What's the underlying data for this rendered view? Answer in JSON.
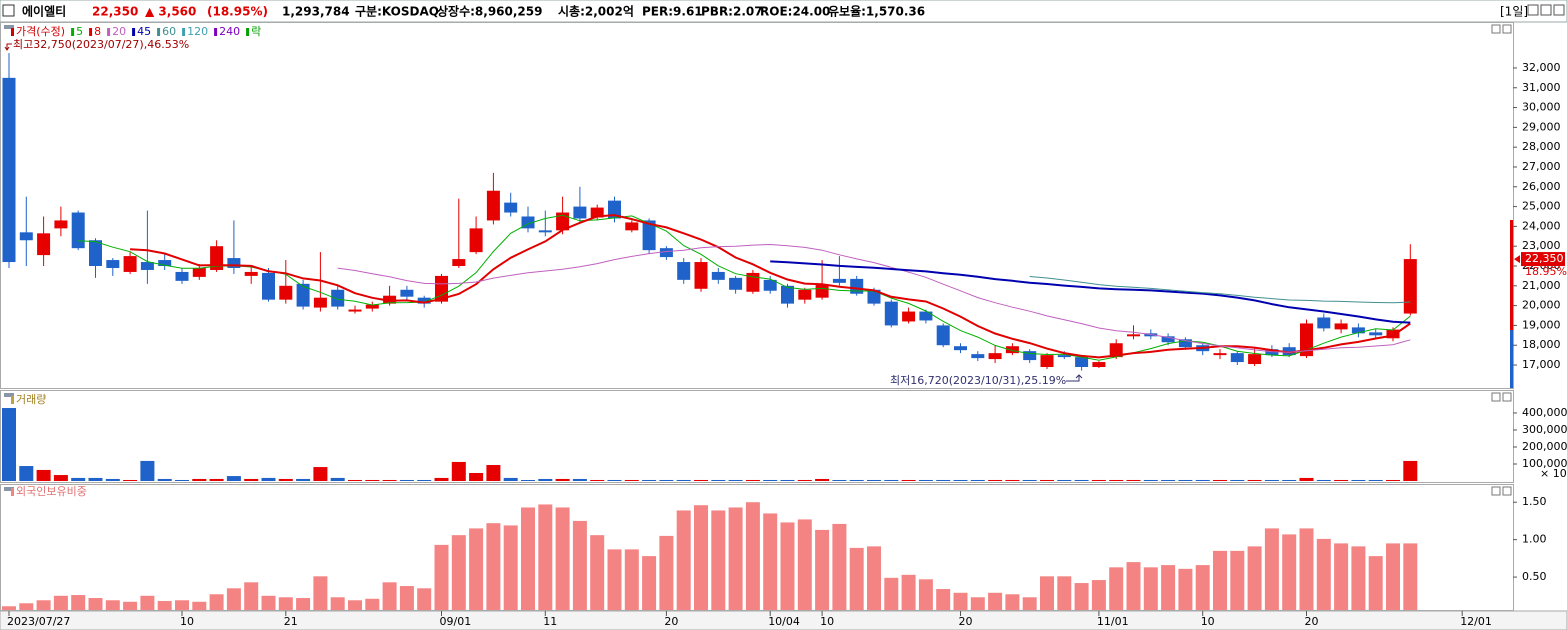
{
  "header": {
    "name": "에이엘티",
    "price": "22,350",
    "change": "▲ 3,560",
    "change_pct": "(18.95%)",
    "volume": "1,293,784",
    "market": "구분:KOSDAQ",
    "shares": "상장수:8,960,259",
    "cap": "시총:2,002억",
    "per": "PER:9.61",
    "pbr": "PBR:2.07",
    "roe": "ROE:24.00",
    "reserve": "유보율:1,570.36",
    "period": "[1일]"
  },
  "chart_data": [
    {
      "type": "candlestick",
      "legend": [
        {
          "name": "가격(수정)",
          "color": "#d00000"
        },
        {
          "name": "5",
          "period": 5,
          "color": "#00b000"
        },
        {
          "name": "8",
          "period": 8,
          "color": "#e00000"
        },
        {
          "name": "20",
          "period": 20,
          "color": "#c060c0"
        },
        {
          "name": "45",
          "period": 45,
          "color": "#0000b0"
        },
        {
          "name": "60",
          "period": 60,
          "color": "#409090"
        },
        {
          "name": "120",
          "period": 120,
          "color": "#40a0b0"
        },
        {
          "name": "240",
          "period": 240,
          "color": "#8000c0"
        },
        {
          "name": "락",
          "color": "#00a000"
        }
      ],
      "categories": [
        "2023/07/27",
        null,
        null,
        null,
        null,
        null,
        null,
        null,
        null,
        null,
        "10",
        null,
        null,
        null,
        null,
        null,
        "21",
        null,
        null,
        null,
        null,
        null,
        null,
        null,
        null,
        "09/01",
        null,
        null,
        null,
        null,
        null,
        "11",
        null,
        null,
        null,
        null,
        null,
        null,
        "20",
        null,
        null,
        null,
        null,
        null,
        "10/04",
        null,
        null,
        "10",
        null,
        null,
        null,
        null,
        null,
        null,
        null,
        "20",
        null,
        null,
        null,
        null,
        null,
        null,
        null,
        "11/01",
        null,
        null,
        null,
        null,
        null,
        "10",
        null,
        null,
        null,
        null,
        null,
        "20",
        null,
        null,
        null,
        null,
        null,
        null,
        null,
        null,
        "12/01"
      ],
      "open": [
        31500,
        23700,
        22550,
        23900,
        24700,
        23300,
        22300,
        21700,
        22200,
        22300,
        21700,
        21450,
        21800,
        22400,
        21500,
        21650,
        20300,
        21100,
        19900,
        20800,
        19700,
        19850,
        20100,
        20800,
        20400,
        20200,
        22000,
        22700,
        24300,
        25200,
        24500,
        23800,
        23800,
        25000,
        24450,
        25300,
        23800,
        24300,
        22900,
        22200,
        20850,
        21700,
        21400,
        20700,
        21300,
        21000,
        20300,
        20400,
        21350,
        21350,
        20800,
        20200,
        19200,
        19700,
        19000,
        17950,
        17550,
        17300,
        17600,
        17700,
        16900,
        17500,
        17400,
        16900,
        17400,
        18450,
        18600,
        18450,
        18300,
        18000,
        17500,
        17600,
        17050,
        17800,
        17900,
        17450,
        19400,
        18800,
        18900,
        18650,
        18350,
        19600,
        null,
        null,
        null
      ],
      "high": [
        32750,
        25500,
        24500,
        25000,
        24800,
        23400,
        22400,
        22700,
        24800,
        22600,
        21900,
        22100,
        23300,
        24300,
        22000,
        21900,
        22300,
        21300,
        22700,
        21000,
        20000,
        20200,
        21000,
        21000,
        20500,
        21600,
        25400,
        24500,
        26700,
        25700,
        25000,
        24800,
        25500,
        26000,
        25100,
        25500,
        24300,
        24400,
        23000,
        22400,
        22400,
        21900,
        21500,
        21800,
        21500,
        21100,
        20900,
        22300,
        22500,
        21500,
        20900,
        20300,
        19900,
        19800,
        19100,
        18100,
        17700,
        18000,
        18100,
        17800,
        17600,
        17700,
        17500,
        17200,
        18300,
        19000,
        18800,
        18600,
        18400,
        18100,
        17800,
        17700,
        17900,
        18000,
        18100,
        19300,
        19600,
        19300,
        19100,
        18800,
        18900,
        23100,
        null,
        null,
        null
      ],
      "low": [
        21900,
        22000,
        22000,
        23500,
        22800,
        21400,
        21500,
        21600,
        21100,
        21800,
        21100,
        21300,
        21700,
        21600,
        21100,
        20200,
        20100,
        19800,
        19700,
        19800,
        19600,
        19700,
        20000,
        20300,
        19900,
        20100,
        21900,
        22600,
        24100,
        24500,
        23700,
        23500,
        23600,
        24200,
        24300,
        24200,
        23700,
        22600,
        22300,
        21100,
        20700,
        21100,
        20600,
        20600,
        20600,
        19900,
        20100,
        20300,
        21000,
        20500,
        20000,
        18900,
        19100,
        19100,
        17900,
        17600,
        17200,
        17100,
        17500,
        17100,
        16800,
        17300,
        16720,
        16850,
        17300,
        18300,
        18300,
        18000,
        17800,
        17500,
        17300,
        17000,
        16950,
        17400,
        17400,
        17350,
        18700,
        18600,
        18400,
        18300,
        18200,
        19500,
        null,
        null,
        null
      ],
      "close": [
        22200,
        23300,
        23650,
        24300,
        22900,
        22000,
        21900,
        22500,
        21800,
        22000,
        21250,
        21900,
        23000,
        21900,
        21700,
        20300,
        21000,
        19950,
        20400,
        19950,
        19800,
        20050,
        20500,
        20450,
        20100,
        21500,
        22350,
        23900,
        25800,
        24700,
        23900,
        23700,
        24700,
        24400,
        24950,
        24400,
        24200,
        22800,
        22450,
        21300,
        22200,
        21300,
        20800,
        21650,
        20750,
        20100,
        20800,
        21050,
        21150,
        20600,
        20100,
        19000,
        19700,
        19250,
        18000,
        17750,
        17350,
        17600,
        17950,
        17250,
        17500,
        17400,
        16900,
        17150,
        18100,
        18550,
        18450,
        18150,
        17900,
        17700,
        17600,
        17150,
        17550,
        17500,
        17500,
        19100,
        18850,
        19100,
        18600,
        18500,
        18790,
        22350,
        null,
        null,
        null
      ],
      "up_color": "#e60000",
      "down_color": "#1f62c9",
      "ylim": [
        15840,
        34320
      ],
      "yticks": [
        {
          "value": 17000,
          "label": "17,000"
        },
        {
          "value": 18000,
          "label": "18,000"
        },
        {
          "value": 19000,
          "label": "19,000"
        },
        {
          "value": 20000,
          "label": "20,000"
        },
        {
          "value": 21000,
          "label": "21,000"
        },
        {
          "value": 22000,
          "label": "22,000"
        },
        {
          "value": 23000,
          "label": "23,000"
        },
        {
          "value": 24000,
          "label": "24,000"
        },
        {
          "value": 25000,
          "label": "25,000"
        },
        {
          "value": 26000,
          "label": "26,000"
        },
        {
          "value": 27000,
          "label": "27,000"
        },
        {
          "value": 28000,
          "label": "28,000"
        },
        {
          "value": 29000,
          "label": "29,000"
        },
        {
          "value": 30000,
          "label": "30,000"
        },
        {
          "value": 31000,
          "label": "31,000"
        },
        {
          "value": 32000,
          "label": "32,000"
        }
      ],
      "annotations": {
        "high": "최고32,750(2023/07/27),46.53%",
        "low": "최저16,720(2023/10/31),25.19%"
      },
      "last_price_label": "22,350",
      "last_change_label": "18.95%"
    },
    {
      "type": "bar",
      "title": "거래량",
      "values": [
        429000,
        88000,
        65000,
        35000,
        18000,
        18000,
        12000,
        6000,
        118000,
        12000,
        6000,
        12000,
        12000,
        29000,
        12000,
        18000,
        12000,
        12000,
        82000,
        18000,
        6000,
        6000,
        6000,
        6000,
        6000,
        18000,
        112000,
        47000,
        94000,
        18000,
        6000,
        12000,
        12000,
        12000,
        6000,
        6000,
        6000,
        6000,
        6000,
        6000,
        6000,
        6000,
        6000,
        6000,
        6000,
        6000,
        6000,
        12000,
        6000,
        6000,
        6000,
        6000,
        6000,
        6000,
        6000,
        6000,
        6000,
        6000,
        6000,
        6000,
        6000,
        6000,
        6000,
        6000,
        6000,
        6000,
        6000,
        6000,
        6000,
        6000,
        6000,
        6000,
        6000,
        6000,
        6000,
        18000,
        6000,
        6000,
        6000,
        6000,
        6000,
        118000,
        null,
        null,
        null
      ],
      "ylim": [
        0,
        535000
      ],
      "yticks": [
        {
          "value": 100000,
          "label": "100,000"
        },
        {
          "value": 200000,
          "label": "200,000"
        },
        {
          "value": 300000,
          "label": "300,000"
        },
        {
          "value": 400000,
          "label": "400,000"
        }
      ],
      "multiplier_label": "× 10"
    },
    {
      "type": "bar",
      "title": "외국인보유비중",
      "color": "#f48484",
      "values": [
        0.11,
        0.15,
        0.19,
        0.25,
        0.26,
        0.22,
        0.19,
        0.17,
        0.25,
        0.18,
        0.19,
        0.17,
        0.27,
        0.35,
        0.43,
        0.25,
        0.23,
        0.22,
        0.51,
        0.23,
        0.19,
        0.21,
        0.43,
        0.38,
        0.35,
        0.93,
        1.06,
        1.15,
        1.22,
        1.19,
        1.43,
        1.47,
        1.43,
        1.25,
        1.06,
        0.87,
        0.87,
        0.78,
        1.05,
        1.39,
        1.46,
        1.39,
        1.43,
        1.5,
        1.35,
        1.23,
        1.27,
        1.13,
        1.21,
        0.89,
        0.91,
        0.49,
        0.53,
        0.47,
        0.34,
        0.29,
        0.23,
        0.29,
        0.27,
        0.23,
        0.51,
        0.51,
        0.42,
        0.46,
        0.63,
        0.7,
        0.63,
        0.66,
        0.61,
        0.66,
        0.85,
        0.85,
        0.91,
        1.15,
        1.07,
        1.15,
        1.01,
        0.95,
        0.91,
        0.78,
        0.95,
        0.95,
        null,
        null,
        null
      ],
      "ylim": [
        0.06,
        1.73
      ],
      "yticks": [
        {
          "value": 0.5,
          "label": "0.50"
        },
        {
          "value": 1,
          "label": "1.00"
        },
        {
          "value": 1.5,
          "label": "1.50"
        }
      ]
    }
  ]
}
